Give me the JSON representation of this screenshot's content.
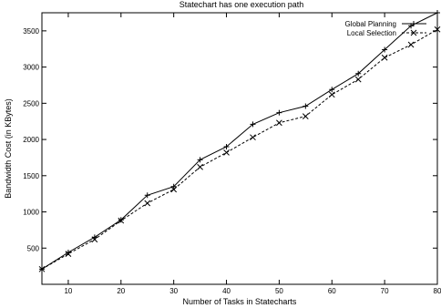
{
  "chart_data": {
    "type": "line",
    "title": "Statechart has one execution path",
    "xlabel": "Number of Tasks in Statecharts",
    "ylabel": "Bandwidth Cost (in KBytes)",
    "xlim": [
      5,
      80
    ],
    "ylim": [
      0,
      3750
    ],
    "xticks": [
      10,
      20,
      30,
      40,
      50,
      60,
      70,
      80
    ],
    "yticks": [
      500,
      1000,
      1500,
      2000,
      2500,
      3000,
      3500
    ],
    "grid": false,
    "legend_position": "top-right",
    "series": [
      {
        "name": "Global Planning",
        "style": "solid",
        "marker": "plus",
        "color": "#000000",
        "x": [
          5,
          10,
          15,
          20,
          25,
          30,
          35,
          40,
          45,
          50,
          55,
          60,
          65,
          70,
          75,
          80
        ],
        "y": [
          210,
          440,
          650,
          890,
          1230,
          1350,
          1720,
          1900,
          2210,
          2370,
          2460,
          2690,
          2910,
          3240,
          3570,
          3750
        ]
      },
      {
        "name": "Local Selection",
        "style": "dashed",
        "marker": "x",
        "color": "#000000",
        "x": [
          5,
          10,
          15,
          20,
          25,
          30,
          35,
          40,
          45,
          50,
          55,
          60,
          65,
          70,
          75,
          80
        ],
        "y": [
          210,
          420,
          620,
          880,
          1120,
          1310,
          1620,
          1820,
          2030,
          2230,
          2320,
          2620,
          2830,
          3130,
          3310,
          3520
        ]
      }
    ]
  }
}
